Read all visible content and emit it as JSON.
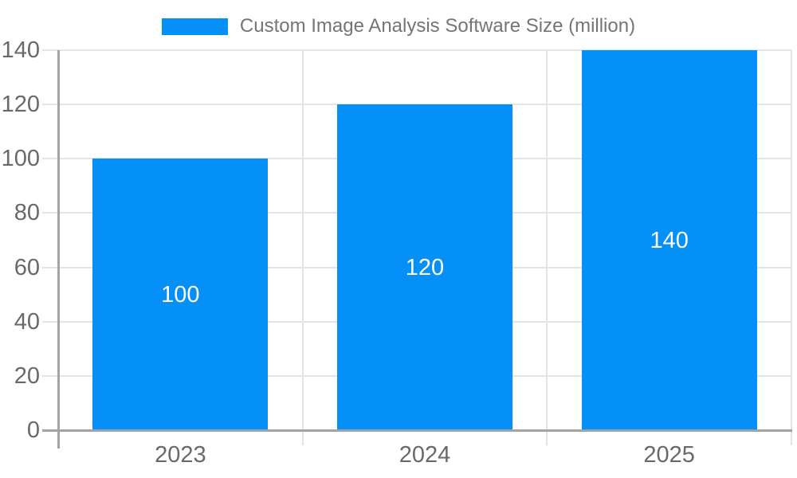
{
  "chart_data": {
    "type": "bar",
    "title": "Custom Image Analysis Software Size (million)",
    "xlabel": "",
    "ylabel": "",
    "categories": [
      "2023",
      "2024",
      "2025"
    ],
    "series": [
      {
        "name": "Custom Image Analysis Software Size (million)",
        "values": [
          100,
          120,
          140
        ]
      }
    ],
    "data_labels": [
      "100",
      "120",
      "140"
    ],
    "data_labels_position": "inside-center",
    "yticks": [
      0,
      20,
      40,
      60,
      80,
      100,
      120,
      140
    ],
    "ylim": [
      0,
      140
    ],
    "grid": true,
    "legend_position": "top",
    "colors": {
      "bar": "#0590f8",
      "grid": "#e4e4e4",
      "axis": "#a3a3a3",
      "tick_label": "#696969",
      "legend_text": "#757575",
      "data_label": "#ffffff",
      "background": "#ffffff"
    }
  }
}
